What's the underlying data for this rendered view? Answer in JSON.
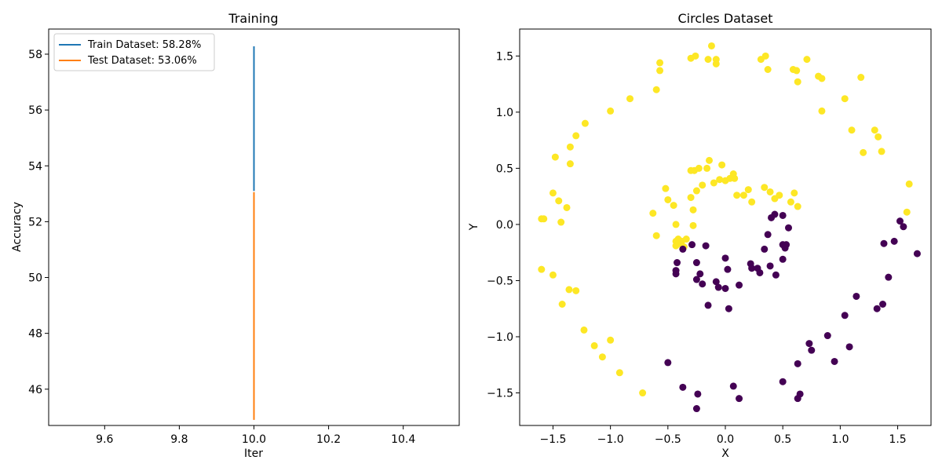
{
  "chart_data": [
    {
      "type": "line",
      "title": "Training",
      "xlabel": "Iter",
      "ylabel": "Accuracy",
      "xlim": [
        9.45,
        10.55
      ],
      "ylim": [
        44.7,
        58.9
      ],
      "xticks": [
        "9.6",
        "9.8",
        "10.0",
        "10.2",
        "10.4"
      ],
      "xtick_values": [
        9.6,
        9.8,
        10.0,
        10.2,
        10.4
      ],
      "yticks": [
        "46",
        "48",
        "50",
        "52",
        "54",
        "56",
        "58"
      ],
      "ytick_values": [
        46,
        48,
        50,
        52,
        54,
        56,
        58
      ],
      "legend_position": "upper-left",
      "series": [
        {
          "name": "Train Dataset: 58.28%",
          "color": "#1f77b4",
          "x": [
            10.0,
            10.0
          ],
          "y": [
            53.1,
            58.28
          ]
        },
        {
          "name": "Test Dataset: 53.06%",
          "color": "#ff7f0e",
          "x": [
            10.0,
            10.0
          ],
          "y": [
            44.9,
            53.06
          ]
        }
      ]
    },
    {
      "type": "scatter",
      "title": "Circles Dataset",
      "xlabel": "X",
      "ylabel": "Y",
      "xlim": [
        -1.79,
        1.79
      ],
      "ylim": [
        -1.79,
        1.74
      ],
      "xticks": [
        "−1.5",
        "−1.0",
        "−0.5",
        "0.0",
        "0.5",
        "1.0",
        "1.5"
      ],
      "xtick_values": [
        -1.5,
        -1.0,
        -0.5,
        0.0,
        0.5,
        1.0,
        1.5
      ],
      "yticks": [
        "−1.5",
        "−1.0",
        "−0.5",
        "0.0",
        "0.5",
        "1.0",
        "1.5"
      ],
      "ytick_values": [
        -1.5,
        -1.0,
        -0.5,
        0.0,
        0.5,
        1.0,
        1.5
      ],
      "class_colors": {
        "0": "#440154",
        "1": "#fde725"
      },
      "points": [
        [
          -1.6,
          0.05,
          1
        ],
        [
          -1.58,
          0.05,
          1
        ],
        [
          -1.6,
          -0.4,
          1
        ],
        [
          -1.5,
          -0.45,
          1
        ],
        [
          -1.5,
          0.28,
          1
        ],
        [
          -1.48,
          0.6,
          1
        ],
        [
          -1.45,
          0.21,
          1
        ],
        [
          -1.43,
          0.02,
          1
        ],
        [
          -1.42,
          -0.71,
          1
        ],
        [
          -1.38,
          0.15,
          1
        ],
        [
          -1.36,
          -0.58,
          1
        ],
        [
          -1.35,
          0.54,
          1
        ],
        [
          -1.35,
          0.69,
          1
        ],
        [
          -1.3,
          -0.59,
          1
        ],
        [
          -1.3,
          0.79,
          1
        ],
        [
          -1.23,
          -0.94,
          1
        ],
        [
          -1.22,
          0.9,
          1
        ],
        [
          -1.14,
          -1.08,
          1
        ],
        [
          -1.07,
          -1.18,
          1
        ],
        [
          -1.0,
          -1.03,
          1
        ],
        [
          -1.0,
          1.01,
          1
        ],
        [
          -0.92,
          -1.32,
          1
        ],
        [
          -0.83,
          1.12,
          1
        ],
        [
          -0.72,
          -1.5,
          1
        ],
        [
          -0.63,
          0.1,
          1
        ],
        [
          -0.6,
          1.2,
          1
        ],
        [
          -0.6,
          -0.1,
          1
        ],
        [
          -0.57,
          1.44,
          1
        ],
        [
          -0.57,
          1.37,
          1
        ],
        [
          -0.52,
          0.32,
          1
        ],
        [
          -0.5,
          0.22,
          1
        ],
        [
          -0.45,
          0.17,
          1
        ],
        [
          -0.43,
          0.0,
          1
        ],
        [
          -0.43,
          -0.15,
          1
        ],
        [
          -0.43,
          -0.19,
          1
        ],
        [
          -0.41,
          -0.13,
          1
        ],
        [
          -0.4,
          -0.17,
          1
        ],
        [
          -0.38,
          -0.15,
          1
        ],
        [
          -0.36,
          -0.2,
          1
        ],
        [
          -0.34,
          -0.13,
          1
        ],
        [
          -0.3,
          0.48,
          1
        ],
        [
          -0.3,
          0.24,
          1
        ],
        [
          -0.28,
          0.13,
          1
        ],
        [
          -0.28,
          -0.01,
          1
        ],
        [
          -0.27,
          0.48,
          1
        ],
        [
          -0.3,
          1.48,
          1
        ],
        [
          -0.26,
          1.5,
          1
        ],
        [
          -0.25,
          0.3,
          1
        ],
        [
          -0.23,
          0.5,
          1
        ],
        [
          -0.2,
          0.35,
          1
        ],
        [
          -0.16,
          0.5,
          1
        ],
        [
          -0.15,
          1.47,
          1
        ],
        [
          -0.14,
          0.57,
          1
        ],
        [
          -0.12,
          1.59,
          1
        ],
        [
          -0.1,
          0.37,
          1
        ],
        [
          -0.08,
          1.47,
          1
        ],
        [
          -0.08,
          1.43,
          1
        ],
        [
          -0.05,
          0.4,
          1
        ],
        [
          -0.03,
          0.53,
          1
        ],
        [
          0.0,
          0.39,
          1
        ],
        [
          0.04,
          0.41,
          1
        ],
        [
          0.07,
          0.45,
          1
        ],
        [
          0.08,
          0.41,
          1
        ],
        [
          0.1,
          0.26,
          1
        ],
        [
          0.16,
          0.26,
          1
        ],
        [
          0.2,
          0.31,
          1
        ],
        [
          0.23,
          0.2,
          1
        ],
        [
          0.31,
          1.47,
          1
        ],
        [
          0.34,
          0.33,
          1
        ],
        [
          0.35,
          1.5,
          1
        ],
        [
          0.37,
          1.38,
          1
        ],
        [
          0.39,
          0.29,
          1
        ],
        [
          0.43,
          0.23,
          1
        ],
        [
          0.47,
          0.26,
          1
        ],
        [
          0.57,
          0.2,
          1
        ],
        [
          0.59,
          1.38,
          1
        ],
        [
          0.6,
          0.28,
          1
        ],
        [
          0.62,
          1.37,
          1
        ],
        [
          0.63,
          0.16,
          1
        ],
        [
          0.63,
          1.27,
          1
        ],
        [
          0.71,
          1.47,
          1
        ],
        [
          0.81,
          1.32,
          1
        ],
        [
          0.84,
          1.01,
          1
        ],
        [
          0.84,
          1.3,
          1
        ],
        [
          1.04,
          1.12,
          1
        ],
        [
          1.1,
          0.84,
          1
        ],
        [
          1.18,
          1.31,
          1
        ],
        [
          1.2,
          0.64,
          1
        ],
        [
          1.3,
          0.84,
          1
        ],
        [
          1.33,
          0.78,
          1
        ],
        [
          1.36,
          0.65,
          1
        ],
        [
          1.58,
          0.11,
          1
        ],
        [
          1.6,
          0.36,
          1
        ],
        [
          -0.37,
          -0.22,
          0
        ],
        [
          -0.42,
          -0.34,
          0
        ],
        [
          -0.43,
          -0.44,
          0
        ],
        [
          -0.43,
          -0.41,
          0
        ],
        [
          -0.29,
          -0.18,
          0
        ],
        [
          -0.25,
          -0.34,
          0
        ],
        [
          -0.25,
          -0.49,
          0
        ],
        [
          -0.22,
          -0.44,
          0
        ],
        [
          -0.2,
          -0.53,
          0
        ],
        [
          -0.17,
          -0.19,
          0
        ],
        [
          -0.15,
          -0.72,
          0
        ],
        [
          -0.08,
          -0.51,
          0
        ],
        [
          -0.06,
          -0.56,
          0
        ],
        [
          0.0,
          -0.57,
          0
        ],
        [
          0.0,
          -0.3,
          0
        ],
        [
          0.02,
          -0.4,
          0
        ],
        [
          0.03,
          -0.75,
          0
        ],
        [
          0.12,
          -0.54,
          0
        ],
        [
          0.22,
          -0.35,
          0
        ],
        [
          0.23,
          -0.39,
          0
        ],
        [
          0.28,
          -0.39,
          0
        ],
        [
          0.3,
          -0.43,
          0
        ],
        [
          0.34,
          -0.22,
          0
        ],
        [
          0.37,
          -0.09,
          0
        ],
        [
          0.39,
          -0.37,
          0
        ],
        [
          0.4,
          0.06,
          0
        ],
        [
          0.43,
          0.09,
          0
        ],
        [
          0.44,
          -0.45,
          0
        ],
        [
          0.5,
          0.08,
          0
        ],
        [
          0.5,
          -0.18,
          0
        ],
        [
          0.52,
          -0.21,
          0
        ],
        [
          0.53,
          -0.18,
          0
        ],
        [
          0.5,
          -0.31,
          0
        ],
        [
          0.55,
          -0.03,
          0
        ],
        [
          -0.5,
          -1.23,
          0
        ],
        [
          -0.37,
          -1.45,
          0
        ],
        [
          -0.25,
          -1.64,
          0
        ],
        [
          -0.24,
          -1.51,
          0
        ],
        [
          0.07,
          -1.44,
          0
        ],
        [
          0.12,
          -1.55,
          0
        ],
        [
          0.5,
          -1.4,
          0
        ],
        [
          0.63,
          -1.24,
          0
        ],
        [
          0.63,
          -1.55,
          0
        ],
        [
          0.65,
          -1.51,
          0
        ],
        [
          0.73,
          -1.06,
          0
        ],
        [
          0.75,
          -1.12,
          0
        ],
        [
          0.89,
          -0.99,
          0
        ],
        [
          0.95,
          -1.22,
          0
        ],
        [
          1.04,
          -0.81,
          0
        ],
        [
          1.08,
          -1.09,
          0
        ],
        [
          1.14,
          -0.64,
          0
        ],
        [
          1.32,
          -0.75,
          0
        ],
        [
          1.37,
          -0.71,
          0
        ],
        [
          1.38,
          -0.17,
          0
        ],
        [
          1.42,
          -0.47,
          0
        ],
        [
          1.47,
          -0.15,
          0
        ],
        [
          1.52,
          0.03,
          0
        ],
        [
          1.55,
          -0.02,
          0
        ],
        [
          1.67,
          -0.26,
          0
        ]
      ]
    }
  ]
}
